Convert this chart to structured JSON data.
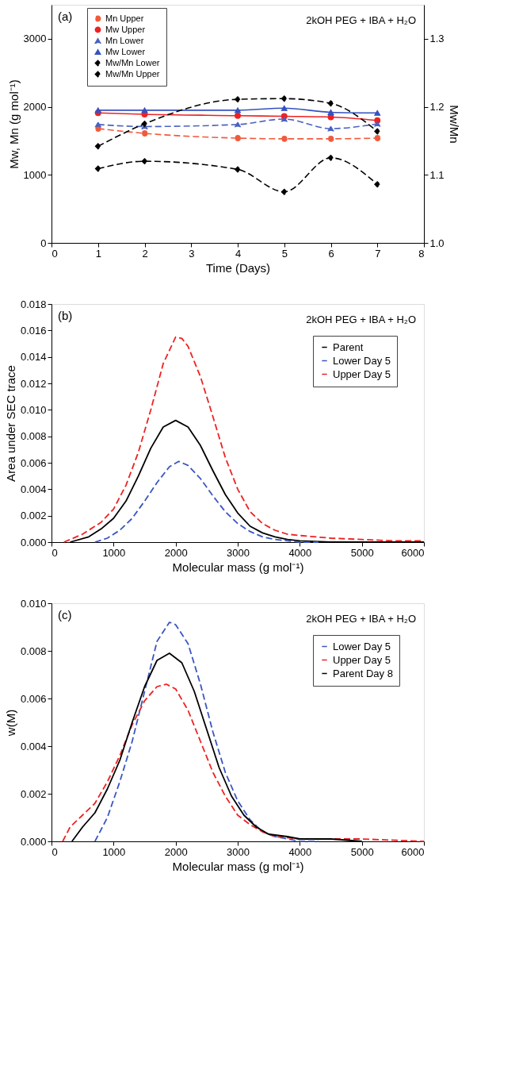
{
  "chart_data": [
    {
      "type": "line",
      "xlabel": "Time (Days)",
      "ylabel": "Mw, Mn (g mol⁻¹)",
      "y2label": "Mw/Mn",
      "annotations": [
        "(a)",
        "2kOH PEG + IBA + H₂O"
      ],
      "x": [
        1,
        2,
        4,
        5,
        6,
        7
      ],
      "xlim": [
        0,
        8
      ],
      "xticks": [
        0,
        1,
        2,
        3,
        4,
        5,
        6,
        7,
        8
      ],
      "ylim": [
        0,
        3500
      ],
      "yticks": [
        0,
        1000,
        2000,
        3000
      ],
      "y2lim": [
        1.0,
        1.35
      ],
      "y2ticks": [
        {
          "value": 1.0,
          "label": "1.0"
        },
        1.1,
        1.2,
        1.3
      ],
      "grid": false,
      "legend": "top left",
      "series": [
        {
          "name": "Mn Upper",
          "color": "#f05a3c",
          "marker": "circle",
          "line_style": "dashed",
          "values": [
            1680,
            1610,
            1540,
            1530,
            1530,
            1540
          ]
        },
        {
          "name": "Mw Upper",
          "color": "#ee2222",
          "marker": "circle",
          "line_style": "solid",
          "values": [
            1910,
            1890,
            1870,
            1860,
            1850,
            1800
          ]
        },
        {
          "name": "Mn Lower",
          "color": "#4a62c0",
          "marker": "triangle",
          "line_style": "dashed",
          "values": [
            1740,
            1710,
            1740,
            1820,
            1680,
            1750
          ]
        },
        {
          "name": "Mw Lower",
          "color": "#3552c0",
          "marker": "triangle",
          "line_style": "solid",
          "values": [
            1950,
            1950,
            1950,
            1980,
            1920,
            1910
          ]
        },
        {
          "name": "Mw/Mn Lower",
          "color": "#000000",
          "marker": "diamond",
          "line_style": "dashed",
          "axis": "y2",
          "values": [
            1.109,
            1.12,
            1.108,
            1.075,
            1.125,
            1.086
          ]
        },
        {
          "name": "Mw/Mn Upper",
          "color": "#000000",
          "marker": "diamond",
          "line_style": "dashed",
          "axis": "y2",
          "values": [
            1.142,
            1.175,
            1.211,
            1.212,
            1.205,
            1.164
          ]
        }
      ]
    },
    {
      "type": "line",
      "xlabel": "Molecular mass (g mol⁻¹)",
      "ylabel": "Area under SEC trace",
      "annotations": [
        "(b)",
        "2kOH PEG + IBA + H₂O"
      ],
      "xlim": [
        0,
        6000
      ],
      "xticks": [
        0,
        1000,
        2000,
        3000,
        4000,
        5000,
        6000
      ],
      "ylim": [
        0,
        0.018
      ],
      "yticks": [
        {
          "value": 0,
          "label": "0.000"
        },
        {
          "value": 0.002,
          "label": "0.002"
        },
        {
          "value": 0.004,
          "label": "0.004"
        },
        {
          "value": 0.006,
          "label": "0.006"
        },
        {
          "value": 0.008,
          "label": "0.008"
        },
        {
          "value": 0.01,
          "label": "0.010"
        },
        {
          "value": 0.012,
          "label": "0.012"
        },
        {
          "value": 0.014,
          "label": "0.014"
        },
        {
          "value": 0.016,
          "label": "0.016"
        },
        {
          "value": 0.018,
          "label": "0.018"
        }
      ],
      "grid": false,
      "legend": "top right",
      "series": [
        {
          "name": "Parent",
          "color": "#000000",
          "line_style": "solid",
          "x": [
            300,
            600,
            800,
            1000,
            1200,
            1400,
            1600,
            1800,
            2000,
            2200,
            2400,
            2600,
            2800,
            3000,
            3200,
            3400,
            3600,
            3800,
            4000,
            4500,
            5000,
            6000
          ],
          "values": [
            0,
            0.0004,
            0.001,
            0.0018,
            0.0031,
            0.005,
            0.0071,
            0.0087,
            0.0092,
            0.0087,
            0.0073,
            0.0054,
            0.0036,
            0.0022,
            0.0012,
            0.0007,
            0.0004,
            0.0002,
            0.0001,
            0,
            0,
            0
          ]
        },
        {
          "name": "Lower Day 5",
          "color": "#3a56c0",
          "line_style": "dashed",
          "x": [
            700,
            900,
            1100,
            1300,
            1500,
            1700,
            1900,
            2050,
            2200,
            2400,
            2600,
            2800,
            3000,
            3200,
            3400,
            3600,
            3800,
            4000,
            4300
          ],
          "values": [
            0,
            0.0003,
            0.0009,
            0.0018,
            0.0031,
            0.0045,
            0.0057,
            0.0061,
            0.0058,
            0.0048,
            0.0035,
            0.0023,
            0.0014,
            0.0008,
            0.0004,
            0.0002,
            0.0001,
            0,
            0
          ]
        },
        {
          "name": "Upper Day 5",
          "color": "#ee2222",
          "line_style": "dashed",
          "x": [
            200,
            500,
            800,
            1000,
            1200,
            1400,
            1600,
            1800,
            2000,
            2100,
            2200,
            2400,
            2600,
            2800,
            3000,
            3200,
            3400,
            3600,
            3800,
            4000,
            4500,
            5000,
            5500,
            6000
          ],
          "values": [
            0,
            0.0006,
            0.0015,
            0.0025,
            0.0043,
            0.0068,
            0.01,
            0.0135,
            0.0155,
            0.0154,
            0.0148,
            0.0125,
            0.0095,
            0.0064,
            0.004,
            0.0023,
            0.0014,
            0.0009,
            0.0006,
            0.0005,
            0.0003,
            0.0002,
            0.0001,
            0.0001
          ]
        }
      ]
    },
    {
      "type": "line",
      "xlabel": "Molecular mass (g mol⁻¹)",
      "ylabel": "w(M)",
      "annotations": [
        "(c)",
        "2kOH PEG + IBA + H₂O"
      ],
      "xlim": [
        0,
        6000
      ],
      "xticks": [
        0,
        1000,
        2000,
        3000,
        4000,
        5000,
        6000
      ],
      "ylim": [
        0,
        0.01
      ],
      "yticks": [
        {
          "value": 0,
          "label": "0.000"
        },
        {
          "value": 0.002,
          "label": "0.002"
        },
        {
          "value": 0.004,
          "label": "0.004"
        },
        {
          "value": 0.006,
          "label": "0.006"
        },
        {
          "value": 0.008,
          "label": "0.008"
        },
        {
          "value": 0.01,
          "label": "0.010"
        }
      ],
      "grid": false,
      "legend": "top right",
      "series": [
        {
          "name": "Lower Day 5",
          "color": "#3a56c0",
          "line_style": "dashed",
          "x": [
            700,
            900,
            1100,
            1300,
            1500,
            1700,
            1900,
            2000,
            2200,
            2400,
            2600,
            2800,
            3000,
            3200,
            3400,
            3600,
            3800,
            4000,
            4300
          ],
          "values": [
            0,
            0.001,
            0.0025,
            0.0042,
            0.0063,
            0.0084,
            0.0092,
            0.0091,
            0.0083,
            0.0066,
            0.0046,
            0.0029,
            0.0017,
            0.0009,
            0.0004,
            0.0002,
            0.0001,
            0,
            0
          ]
        },
        {
          "name": "Upper Day 5",
          "color": "#ee2222",
          "line_style": "dashed",
          "x": [
            180,
            300,
            500,
            700,
            900,
            1100,
            1300,
            1500,
            1700,
            1850,
            2000,
            2200,
            2400,
            2600,
            2800,
            3000,
            3200,
            3400,
            3600,
            4000,
            5000,
            6000
          ],
          "values": [
            0,
            0.0006,
            0.0011,
            0.0016,
            0.0025,
            0.0036,
            0.0049,
            0.0059,
            0.0065,
            0.0066,
            0.0064,
            0.0055,
            0.0042,
            0.0029,
            0.0019,
            0.0011,
            0.0007,
            0.0004,
            0.0002,
            0.0001,
            0.0001,
            0
          ]
        },
        {
          "name": "Parent Day 8",
          "color": "#000000",
          "line_style": "solid",
          "x": [
            330,
            500,
            700,
            900,
            1100,
            1300,
            1500,
            1700,
            1900,
            2100,
            2300,
            2500,
            2700,
            2900,
            3100,
            3300,
            3500,
            3800,
            4000,
            4500,
            5000
          ],
          "values": [
            0,
            0.0006,
            0.0012,
            0.0022,
            0.0034,
            0.005,
            0.0065,
            0.0076,
            0.0079,
            0.0075,
            0.0063,
            0.0047,
            0.0031,
            0.0019,
            0.0011,
            0.0006,
            0.0003,
            0.0002,
            0.0001,
            0.0001,
            0
          ]
        }
      ]
    }
  ]
}
